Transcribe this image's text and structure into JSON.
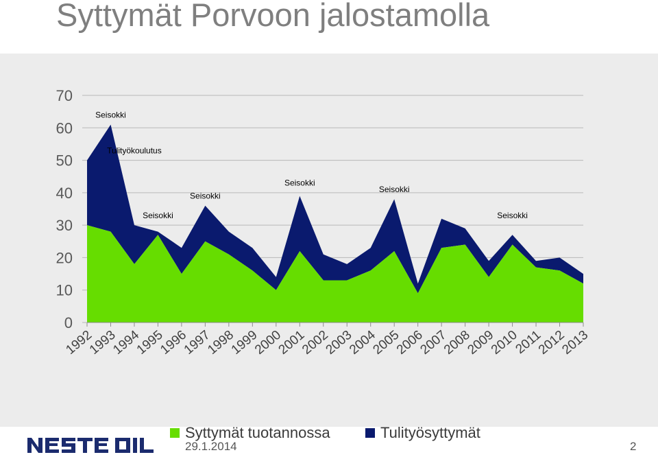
{
  "slide": {
    "title": "Syttymät Porvoon jalostamolla",
    "footer_date": "29.1.2014",
    "page_number": "2",
    "logo_text": "NESTE OIL"
  },
  "chart_data": {
    "type": "area",
    "stacked": true,
    "x": [
      "1992",
      "1993",
      "1994",
      "1995",
      "1996",
      "1997",
      "1998",
      "1999",
      "2000",
      "2001",
      "2002",
      "2003",
      "2004",
      "2005",
      "2006",
      "2007",
      "2008",
      "2009",
      "2010",
      "2011",
      "2012",
      "2013"
    ],
    "series": [
      {
        "name": "Syttymät tuotannossa",
        "color": "#66dd00",
        "values": [
          30,
          28,
          18,
          27,
          15,
          25,
          21,
          16,
          10,
          22,
          13,
          13,
          16,
          22,
          9,
          23,
          24,
          14,
          24,
          17,
          16,
          12
        ]
      },
      {
        "name": "Tulityösyttymät",
        "color": "#0a1a6e",
        "values": [
          20,
          33,
          12,
          1,
          8,
          11,
          7,
          7,
          4,
          17,
          8,
          5,
          7,
          16,
          3,
          9,
          5,
          5,
          3,
          2,
          4,
          3
        ]
      }
    ],
    "ylim": [
      0,
      70
    ],
    "yticks": [
      0,
      10,
      20,
      30,
      40,
      50,
      60,
      70
    ],
    "grid": true,
    "legend": "bottom",
    "annotations": [
      {
        "text": "Seisokki",
        "x": "1993",
        "y": 64
      },
      {
        "text": "Tulityökoulutus",
        "x": "1994",
        "y": 53
      },
      {
        "text": "Seisokki",
        "x": "1995",
        "y": 33
      },
      {
        "text": "Seisokki",
        "x": "1997",
        "y": 39
      },
      {
        "text": "Seisokki",
        "x": "2001",
        "y": 43
      },
      {
        "text": "Seisokki",
        "x": "2005",
        "y": 41
      },
      {
        "text": "Seisokki",
        "x": "2010",
        "y": 33
      }
    ]
  }
}
